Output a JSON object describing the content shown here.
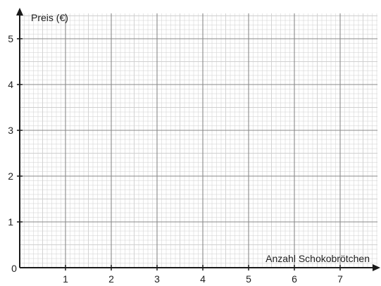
{
  "chart_data": {
    "type": "scatter",
    "title": "",
    "xlabel": "Anzahl Schokobrötchen",
    "ylabel": "Preis (€)",
    "xlim": [
      0,
      7.75
    ],
    "ylim": [
      0,
      5.5
    ],
    "x_ticks": [
      "1",
      "2",
      "3",
      "4",
      "5",
      "6",
      "7"
    ],
    "y_ticks": [
      "1",
      "2",
      "3",
      "4",
      "5"
    ],
    "origin_label": "0",
    "grid": "on",
    "series": []
  },
  "colors": {
    "axis": "#1a1a1a",
    "grid_major": "#8a8a8a",
    "grid_minor": "#cfcfcf",
    "text": "#222222"
  }
}
